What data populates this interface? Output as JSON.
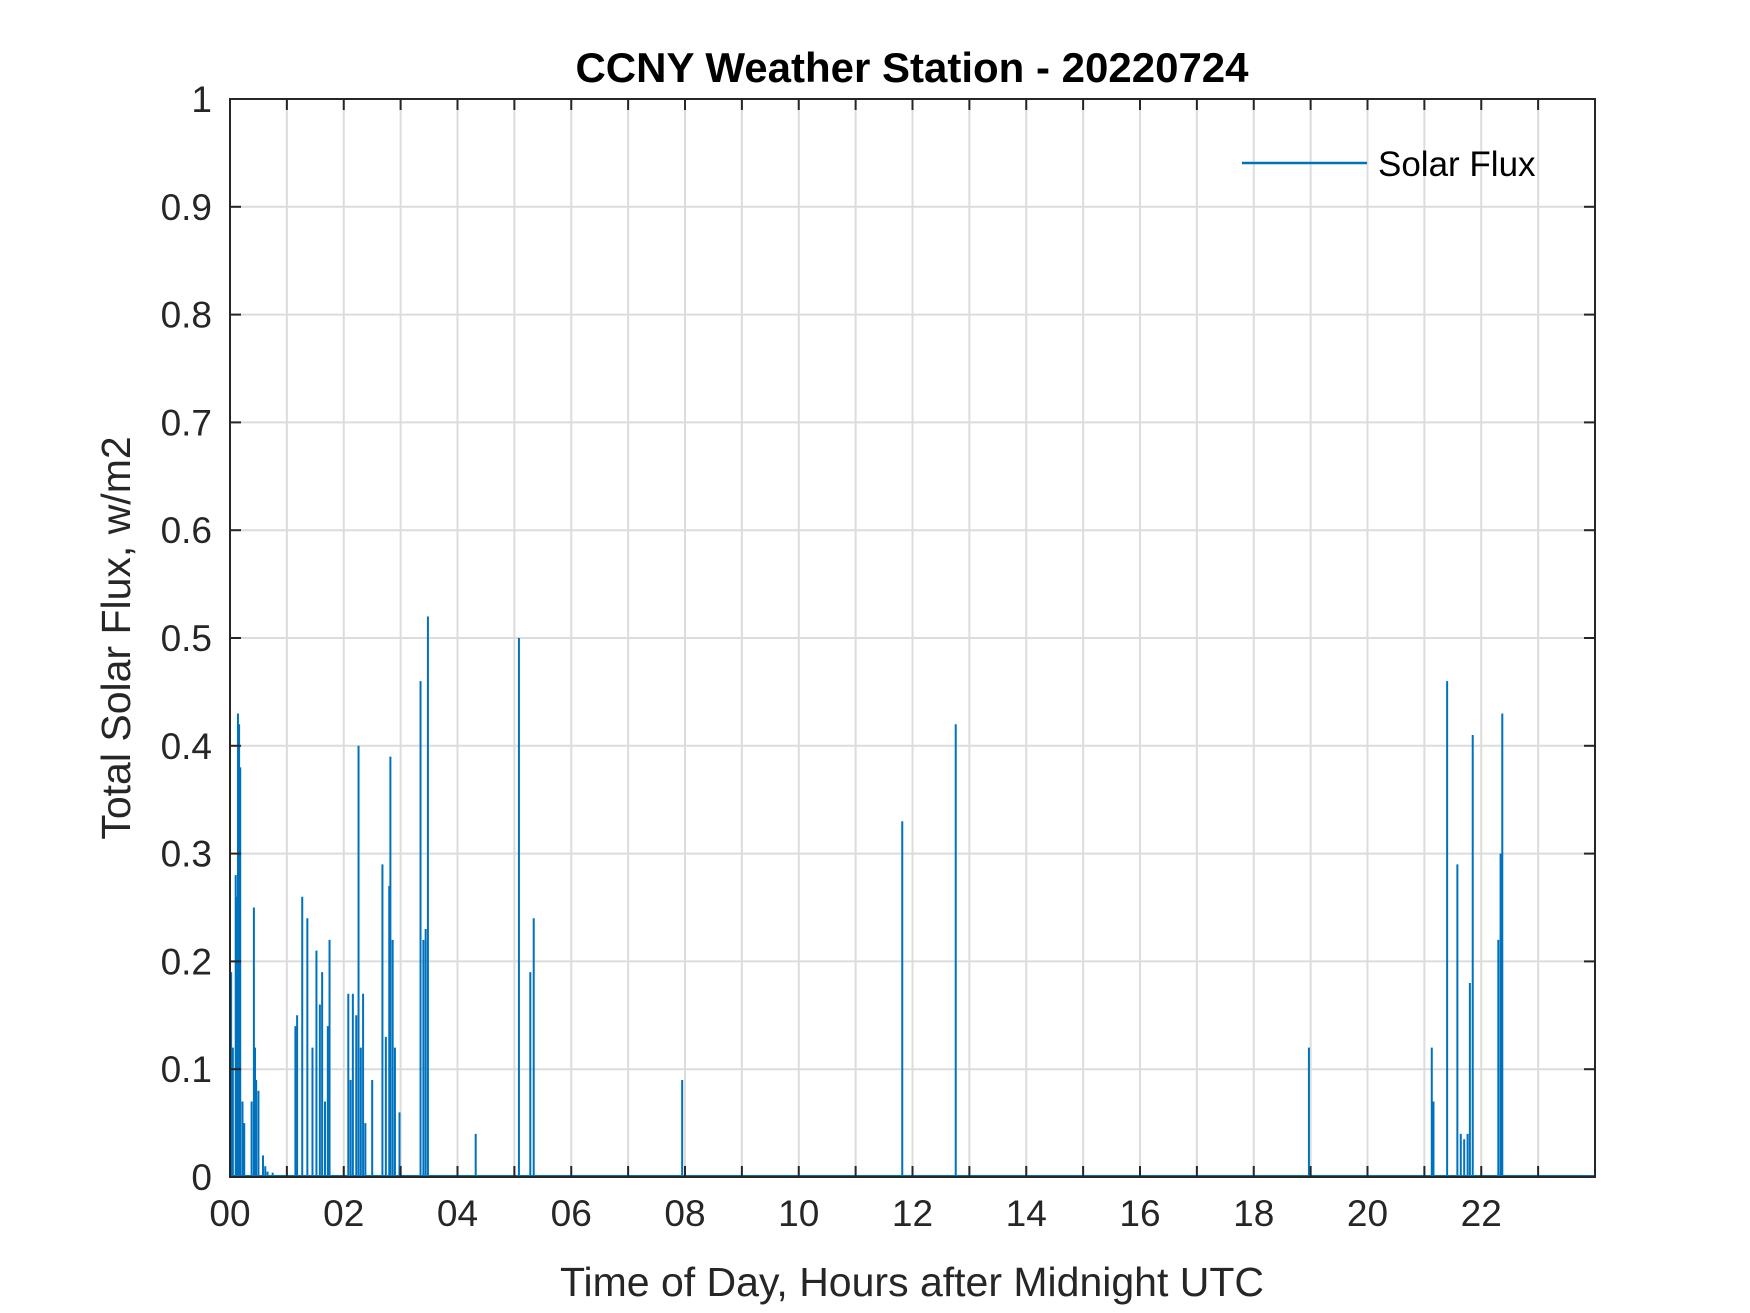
{
  "chart_data": {
    "type": "line",
    "title": "CCNY Weather Station - 20220724",
    "xlabel": "Time of Day, Hours after Midnight UTC",
    "ylabel": "Total Solar Flux, w/m2",
    "xlim": [
      0,
      24
    ],
    "ylim": [
      0,
      1
    ],
    "x_ticks": [
      0,
      2,
      4,
      6,
      8,
      10,
      12,
      14,
      16,
      18,
      20,
      22
    ],
    "x_tick_labels": [
      "00",
      "02",
      "04",
      "06",
      "08",
      "10",
      "12",
      "14",
      "16",
      "18",
      "20",
      "22"
    ],
    "y_ticks": [
      0,
      0.1,
      0.2,
      0.3,
      0.4,
      0.5,
      0.6,
      0.7,
      0.8,
      0.9,
      1
    ],
    "y_tick_labels": [
      "0",
      "0.1",
      "0.2",
      "0.3",
      "0.4",
      "0.5",
      "0.6",
      "0.7",
      "0.8",
      "0.9",
      "1"
    ],
    "grid": true,
    "legend": {
      "position": "top-right",
      "entries": [
        "Solar Flux"
      ]
    },
    "series": [
      {
        "name": "Solar Flux",
        "color": "#0072BD",
        "points": [
          [
            0.02,
            0.19
          ],
          [
            0.05,
            0.12
          ],
          [
            0.1,
            0.28
          ],
          [
            0.12,
            0.26
          ],
          [
            0.14,
            0.43
          ],
          [
            0.16,
            0.42
          ],
          [
            0.18,
            0.38
          ],
          [
            0.22,
            0.07
          ],
          [
            0.25,
            0.05
          ],
          [
            0.38,
            0.07
          ],
          [
            0.42,
            0.25
          ],
          [
            0.44,
            0.12
          ],
          [
            0.46,
            0.09
          ],
          [
            0.5,
            0.08
          ],
          [
            0.58,
            0.02
          ],
          [
            0.62,
            0.01
          ],
          [
            0.66,
            0.005
          ],
          [
            0.75,
            0.004
          ],
          [
            1.15,
            0.14
          ],
          [
            1.18,
            0.15
          ],
          [
            1.27,
            0.26
          ],
          [
            1.36,
            0.24
          ],
          [
            1.45,
            0.12
          ],
          [
            1.52,
            0.21
          ],
          [
            1.58,
            0.16
          ],
          [
            1.62,
            0.19
          ],
          [
            1.67,
            0.07
          ],
          [
            1.72,
            0.14
          ],
          [
            1.75,
            0.22
          ],
          [
            2.08,
            0.17
          ],
          [
            2.12,
            0.09
          ],
          [
            2.16,
            0.17
          ],
          [
            2.22,
            0.15
          ],
          [
            2.26,
            0.4
          ],
          [
            2.3,
            0.12
          ],
          [
            2.34,
            0.17
          ],
          [
            2.38,
            0.05
          ],
          [
            2.5,
            0.09
          ],
          [
            2.68,
            0.29
          ],
          [
            2.74,
            0.13
          ],
          [
            2.8,
            0.27
          ],
          [
            2.82,
            0.39
          ],
          [
            2.86,
            0.22
          ],
          [
            2.9,
            0.12
          ],
          [
            2.98,
            0.06
          ],
          [
            3.35,
            0.46
          ],
          [
            3.4,
            0.22
          ],
          [
            3.44,
            0.23
          ],
          [
            3.48,
            0.52
          ],
          [
            4.32,
            0.04
          ],
          [
            5.08,
            0.5
          ],
          [
            5.28,
            0.19
          ],
          [
            5.34,
            0.24
          ],
          [
            7.95,
            0.09
          ],
          [
            11.82,
            0.33
          ],
          [
            12.76,
            0.42
          ],
          [
            18.97,
            0.12
          ],
          [
            21.13,
            0.12
          ],
          [
            21.16,
            0.07
          ],
          [
            21.4,
            0.46
          ],
          [
            21.58,
            0.29
          ],
          [
            21.64,
            0.04
          ],
          [
            21.7,
            0.035
          ],
          [
            21.76,
            0.04
          ],
          [
            21.8,
            0.18
          ],
          [
            21.85,
            0.41
          ],
          [
            22.3,
            0.22
          ],
          [
            22.34,
            0.3
          ],
          [
            22.37,
            0.43
          ]
        ]
      }
    ]
  }
}
